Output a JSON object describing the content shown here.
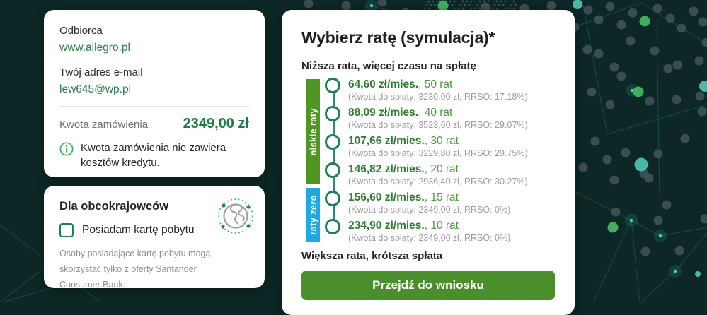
{
  "colors": {
    "background": "#0c2725",
    "brand_green": "#1e7f52",
    "amount_green": "#1c7a43",
    "option_green_bold": "#2e7d33",
    "option_green_light": "#4f9440",
    "rail_green": "#519522",
    "rail_blue": "#1fa9e3",
    "button_green": "#4a8f2c",
    "link_green": "#2c7d4a"
  },
  "order_card": {
    "recipient_label": "Odbiorca",
    "recipient_value": "www.allegro.pl",
    "email_label": "Twój adres e-mail",
    "email_value": "lew645@wp.pl",
    "amount_label": "Kwota zamówienia",
    "amount_value": "2349,00 zł",
    "amount_note": "Kwota zamówienia nie zawiera kosztów kredytu."
  },
  "foreigners_card": {
    "title": "Dla obcokrajowców",
    "checkbox_label": "Posiadam kartę pobytu",
    "checkbox_checked": false,
    "note": "Osoby posiadające kartę pobytu mogą skorzystać tylko z oferty Santander Consumer Bank."
  },
  "simulation_card": {
    "title": "Wybierz ratę (symulacja)*",
    "top_hint": "Niższa rata, więcej czasu na spłatę",
    "bottom_hint": "Większa rata, krótsza spłata",
    "rail_labels": {
      "low": "niskie raty",
      "zero": "raty zero"
    },
    "option_separator": ", ",
    "options": [
      {
        "monthly": "64,60 zł/mies.",
        "count": "50 rat",
        "details": "(Kwota do spłaty: 3230,00 zł, RRSO: 17.18%)",
        "selected": false
      },
      {
        "monthly": "88,09 zł/mies.",
        "count": "40 rat",
        "details": "(Kwota do spłaty: 3523,60 zł, RRSO: 29.07%)",
        "selected": false
      },
      {
        "monthly": "107,66 zł/mies.",
        "count": "30 rat",
        "details": "(Kwota do spłaty: 3229,80 zł, RRSO: 29.75%)",
        "selected": false
      },
      {
        "monthly": "146,82 zł/mies.",
        "count": "20 rat",
        "details": "(Kwota do spłaty: 2936,40 zł, RRSO: 30.27%)",
        "selected": false
      },
      {
        "monthly": "156,60 zł/mies.",
        "count": "15 rat",
        "details": "(Kwota do spłaty: 2349,00 zł, RRSO: 0%)",
        "selected": false
      },
      {
        "monthly": "234,90 zł/mies.",
        "count": "10 rat",
        "details": "(Kwota do spłaty: 2349,00 zł, RRSO: 0%)",
        "selected": false
      }
    ],
    "cta_label": "Przejdź do wniosku"
  }
}
